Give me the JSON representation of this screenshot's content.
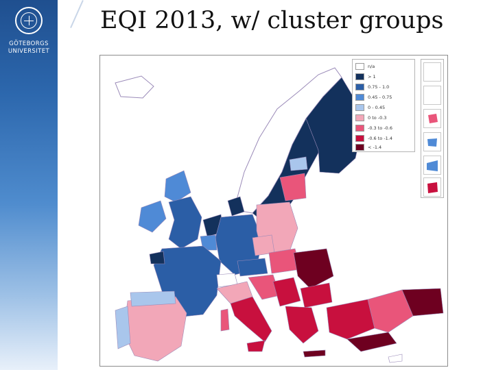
{
  "slide": {
    "title": "EQI 2013, w/ cluster groups"
  },
  "branding": {
    "university_line1": "GÖTEBORGS",
    "university_line2": "UNIVERSITET",
    "seal_icon": "university-seal-icon"
  },
  "map": {
    "background": "#ffffff",
    "land_nodata_color": "#ffffff",
    "border_color": "#9a8ab8",
    "legend": {
      "items": [
        {
          "label": "n/a",
          "color": "#ffffff"
        },
        {
          "label": "> 1",
          "color": "#13315c"
        },
        {
          "label": "0.75 - 1.0",
          "color": "#2b5ea6"
        },
        {
          "label": "0.45 - 0.75",
          "color": "#4f8ad6"
        },
        {
          "label": "0 - 0.45",
          "color": "#a9c6ec"
        },
        {
          "label": "0 to -0.3",
          "color": "#f2a7b8"
        },
        {
          "label": "-0.3 to -0.6",
          "color": "#e9557a"
        },
        {
          "label": "-0.6 to -1.4",
          "color": "#c8103e"
        },
        {
          "label": "< -1.4",
          "color": "#6e0020"
        }
      ]
    }
  }
}
